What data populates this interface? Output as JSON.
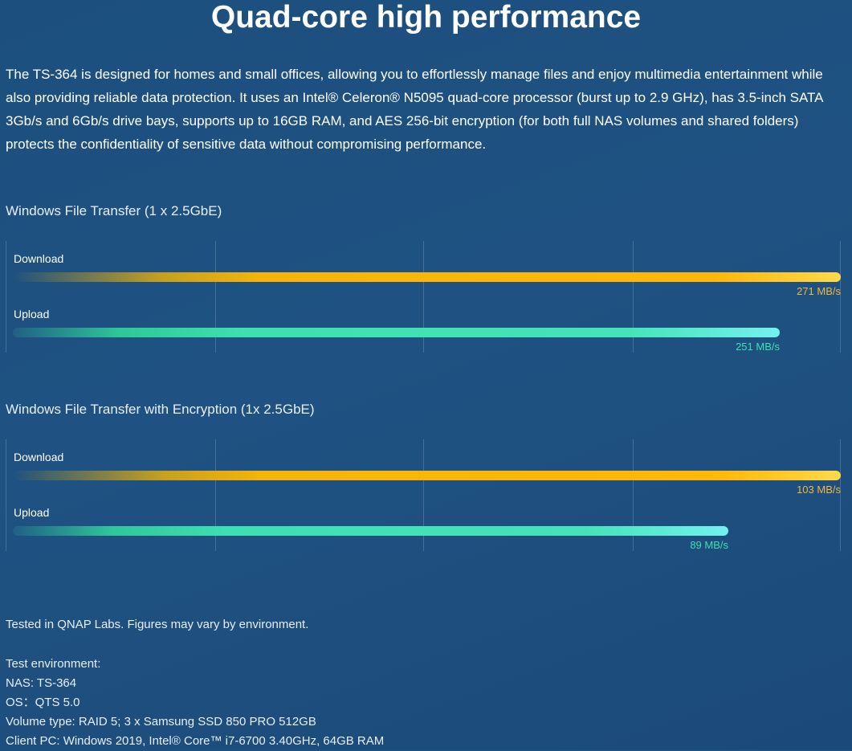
{
  "page": {
    "title": "Quad-core high performance",
    "intro": "The TS-364 is designed for homes and small offices, allowing you to effortlessly manage files and enjoy multimedia entertainment while also providing reliable data protection. It uses an Intel® Celeron® N5095 quad-core processor (burst up to 2.9 GHz), has 3.5-inch SATA 3Gb/s and 6Gb/s drive bays, supports up to 16GB RAM, and AES 256-bit encryption (for both full NAS volumes and shared folders) protects the confidentiality of sensitive data without compromising performance."
  },
  "colors": {
    "download": "#ffb70a",
    "upload": "#45e3b8",
    "background": "#1f5282"
  },
  "chart_data": [
    {
      "type": "bar",
      "title": "Windows File Transfer (1 x 2.5GbE)",
      "categories": [
        "Download",
        "Upload"
      ],
      "values": [
        271,
        251
      ],
      "value_labels": [
        "271 MB/s",
        "251 MB/s"
      ],
      "unit": "MB/s",
      "orientation": "horizontal",
      "grid": true
    },
    {
      "type": "bar",
      "title": "Windows File Transfer with Encryption (1x 2.5GbE)",
      "categories": [
        "Download",
        "Upload"
      ],
      "values": [
        103,
        89
      ],
      "value_labels": [
        "103 MB/s",
        "89 MB/s"
      ],
      "unit": "MB/s",
      "orientation": "horizontal",
      "grid": true
    }
  ],
  "footnotes": {
    "disclaimer": "Tested in QNAP Labs. Figures may vary by environment.",
    "env_heading": "Test environment:",
    "nas": "NAS: TS-364",
    "os": "OS：QTS 5.0",
    "volume": "Volume type: RAID 5; 3 x Samsung SSD 850 PRO 512GB",
    "client": "Client PC: Windows 2019, Intel® Core™ i7-6700 3.40GHz, 64GB RAM"
  }
}
